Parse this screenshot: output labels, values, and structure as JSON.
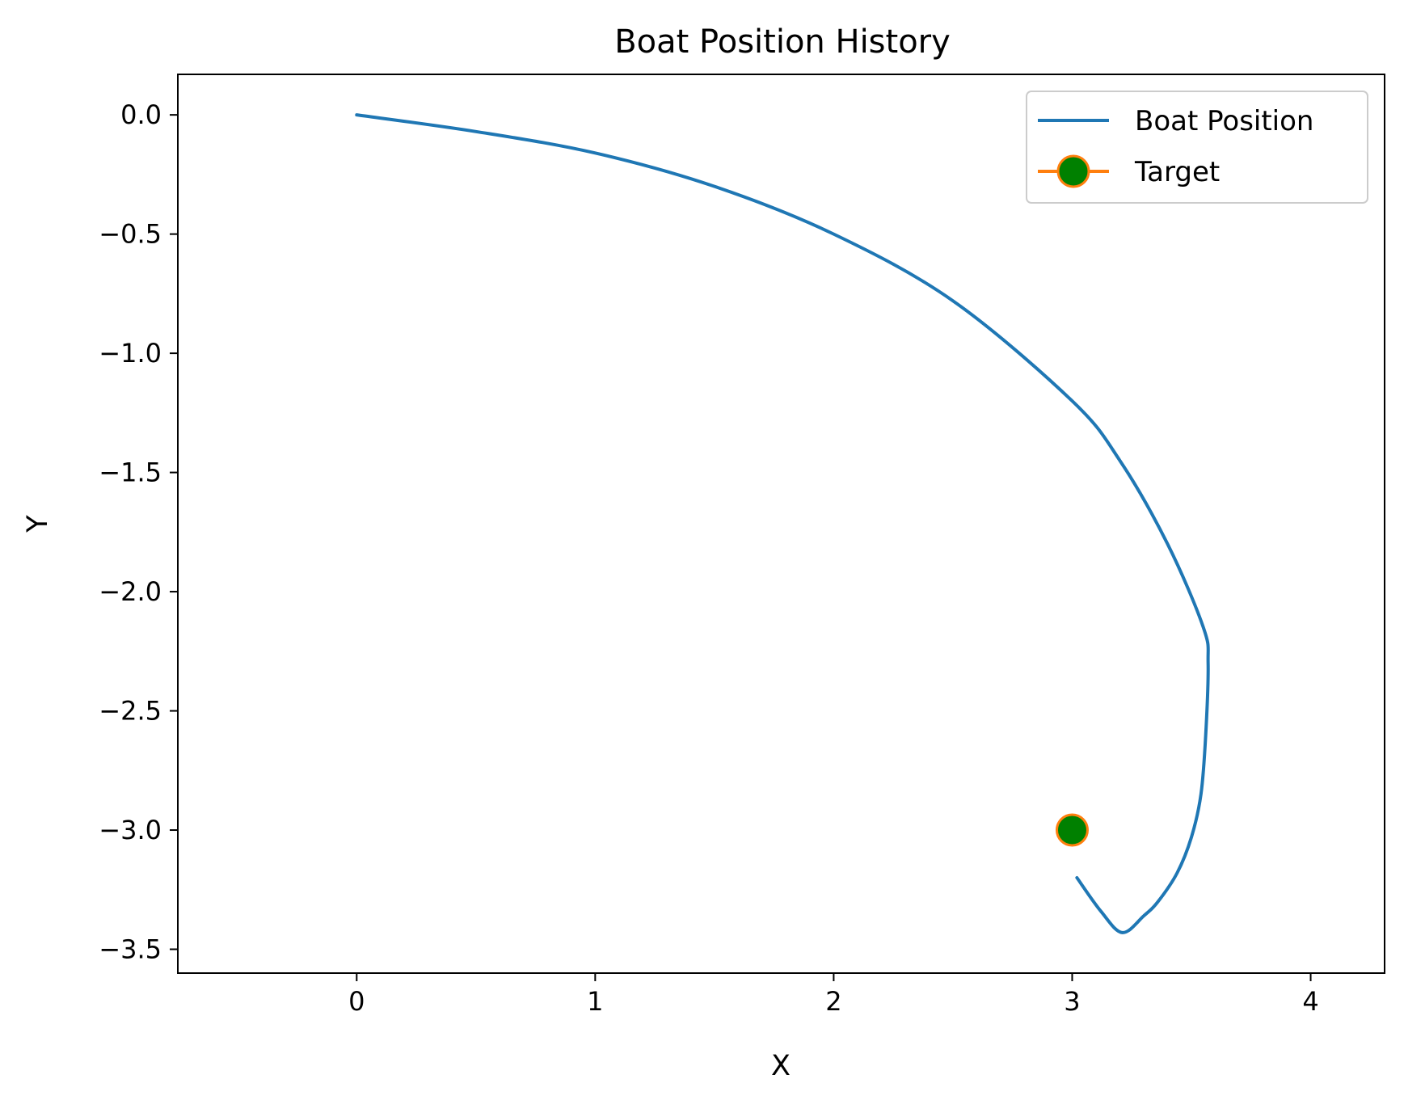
{
  "chart_data": {
    "type": "line",
    "title": "Boat Position History",
    "xlabel": "X",
    "ylabel": "Y",
    "xlim": [
      -0.75,
      4.31
    ],
    "ylim": [
      -3.6,
      0.17
    ],
    "x_ticks": [
      0,
      1,
      2,
      3,
      4
    ],
    "x_tick_labels": [
      "0",
      "1",
      "2",
      "3",
      "4"
    ],
    "y_ticks": [
      0.0,
      -0.5,
      -1.0,
      -1.5,
      -2.0,
      -2.5,
      -3.0,
      -3.5
    ],
    "y_tick_labels": [
      "0.0",
      "−0.5",
      "−1.0",
      "−1.5",
      "−2.0",
      "−2.5",
      "−3.0",
      "−3.5"
    ],
    "grid": false,
    "legend_position": "top-right",
    "series": [
      {
        "name": "Boat Position",
        "type": "line",
        "color": "#1f77b4",
        "x": [
          0.0,
          0.5,
          1.0,
          1.5,
          2.0,
          2.5,
          3.0,
          3.2,
          3.4,
          3.55,
          3.57,
          3.56,
          3.54,
          3.5,
          3.44,
          3.36,
          3.3,
          3.21,
          3.12,
          3.02
        ],
        "y": [
          0.0,
          -0.07,
          -0.16,
          -0.3,
          -0.5,
          -0.78,
          -1.2,
          -1.45,
          -1.8,
          -2.15,
          -2.3,
          -2.6,
          -2.85,
          -3.03,
          -3.18,
          -3.3,
          -3.36,
          -3.43,
          -3.34,
          -3.2
        ]
      },
      {
        "name": "Target",
        "type": "marker",
        "line_color": "#ff7f0e",
        "marker_face": "#008000",
        "marker_edge": "#ff7f0e",
        "x": [
          3.0
        ],
        "y": [
          -3.0
        ]
      }
    ]
  }
}
